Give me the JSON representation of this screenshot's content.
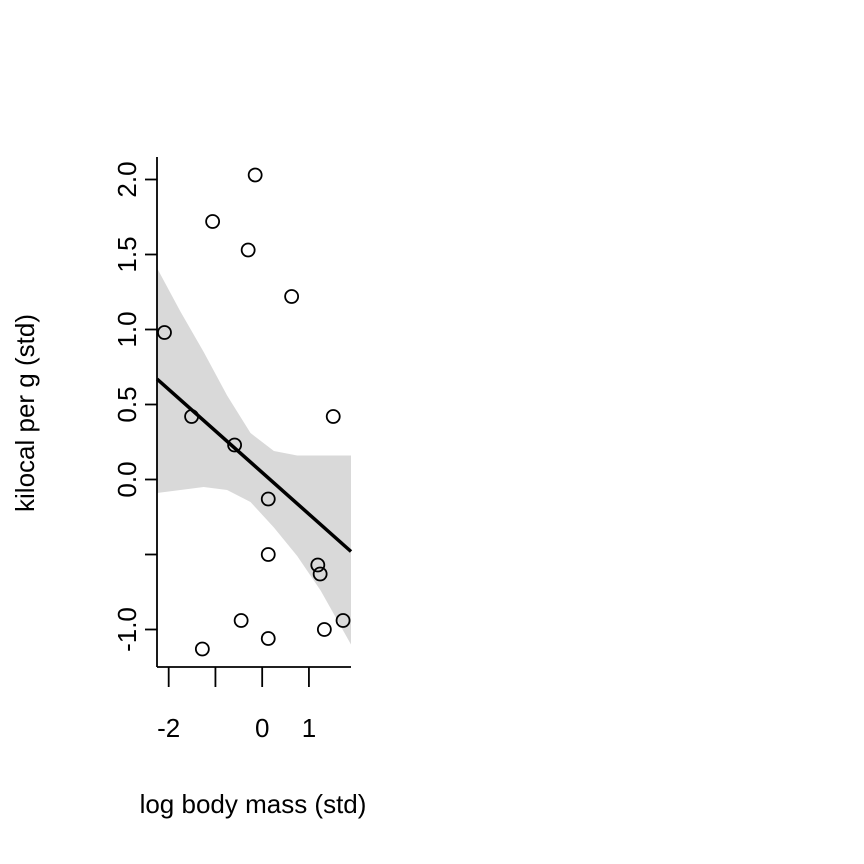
{
  "chart_data": {
    "type": "scatter",
    "title": "",
    "xlabel": "log body mass (std)",
    "ylabel": "kilocal per g (std)",
    "xlim": [
      -2.25,
      1.9
    ],
    "ylim": [
      -1.25,
      2.15
    ],
    "x_ticks": [
      -2,
      -1,
      0,
      1
    ],
    "x_tick_labels": [
      "-2",
      "",
      "0",
      "1"
    ],
    "y_ticks": [
      -1.0,
      -0.5,
      0.0,
      0.5,
      1.0,
      1.5,
      2.0
    ],
    "y_tick_labels": [
      "-1.0",
      "",
      "0.0",
      "0.5",
      "1.0",
      "1.5",
      "2.0"
    ],
    "grid": false,
    "points": [
      {
        "x": -2.09,
        "y": 0.98
      },
      {
        "x": -1.51,
        "y": 0.42
      },
      {
        "x": -1.28,
        "y": -1.13
      },
      {
        "x": -1.06,
        "y": 1.72
      },
      {
        "x": -0.59,
        "y": 0.23
      },
      {
        "x": -0.45,
        "y": -0.94
      },
      {
        "x": -0.3,
        "y": 1.53
      },
      {
        "x": -0.15,
        "y": 2.03
      },
      {
        "x": 0.13,
        "y": -0.13
      },
      {
        "x": 0.13,
        "y": -0.5
      },
      {
        "x": 0.13,
        "y": -1.06
      },
      {
        "x": 0.63,
        "y": 1.22
      },
      {
        "x": 1.19,
        "y": -0.57
      },
      {
        "x": 1.24,
        "y": -0.63
      },
      {
        "x": 1.33,
        "y": -1.0
      },
      {
        "x": 1.52,
        "y": 0.42
      },
      {
        "x": 1.73,
        "y": -0.94
      }
    ],
    "regression_line": [
      {
        "x": -2.25,
        "y": 0.67
      },
      {
        "x": 1.9,
        "y": -0.48
      }
    ],
    "confidence_band": {
      "x": [
        -2.25,
        -1.75,
        -1.25,
        -0.75,
        -0.25,
        0.25,
        0.75,
        1.25,
        1.9
      ],
      "upper": [
        1.41,
        1.12,
        0.85,
        0.56,
        0.31,
        0.19,
        0.16,
        0.16,
        0.16
      ],
      "lower": [
        -0.09,
        -0.07,
        -0.05,
        -0.07,
        -0.15,
        -0.32,
        -0.51,
        -0.74,
        -1.1
      ]
    },
    "colors": {
      "band": "#d9d9d9",
      "line": "#000000",
      "points": "#000000"
    }
  }
}
